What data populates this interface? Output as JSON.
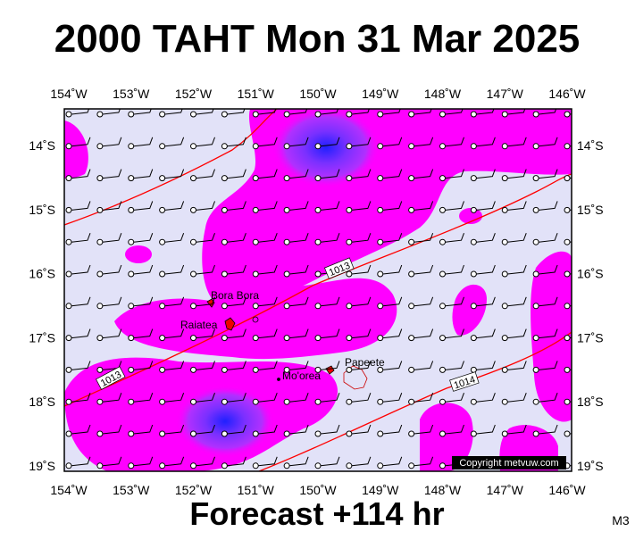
{
  "header": {
    "title": "2000 TAHT Mon 31 Mar 2025"
  },
  "map": {
    "lon_ticks": [
      {
        "value": 154,
        "label": "154˚W"
      },
      {
        "value": 153,
        "label": "153˚W"
      },
      {
        "value": 152,
        "label": "152˚W"
      },
      {
        "value": 151,
        "label": "151˚W"
      },
      {
        "value": 150,
        "label": "150˚W"
      },
      {
        "value": 149,
        "label": "149˚W"
      },
      {
        "value": 148,
        "label": "148˚W"
      },
      {
        "value": 147,
        "label": "147˚W"
      },
      {
        "value": 146,
        "label": "146˚W"
      }
    ],
    "lat_ticks": [
      {
        "value": 14,
        "label": "14˚S"
      },
      {
        "value": 15,
        "label": "15˚S"
      },
      {
        "value": 16,
        "label": "16˚S"
      },
      {
        "value": 17,
        "label": "17˚S"
      },
      {
        "value": 18,
        "label": "18˚S"
      },
      {
        "value": 19,
        "label": "19˚S"
      }
    ],
    "places": [
      "Bora Bora",
      "Raiatea",
      "Mo'orea",
      "Papeete"
    ],
    "isobar_labels": [
      "1013",
      "1013",
      "1014"
    ],
    "copyright": "Copyright metvuw.com"
  },
  "footer": {
    "caption": "Forecast +114 hr",
    "code": "M3"
  }
}
